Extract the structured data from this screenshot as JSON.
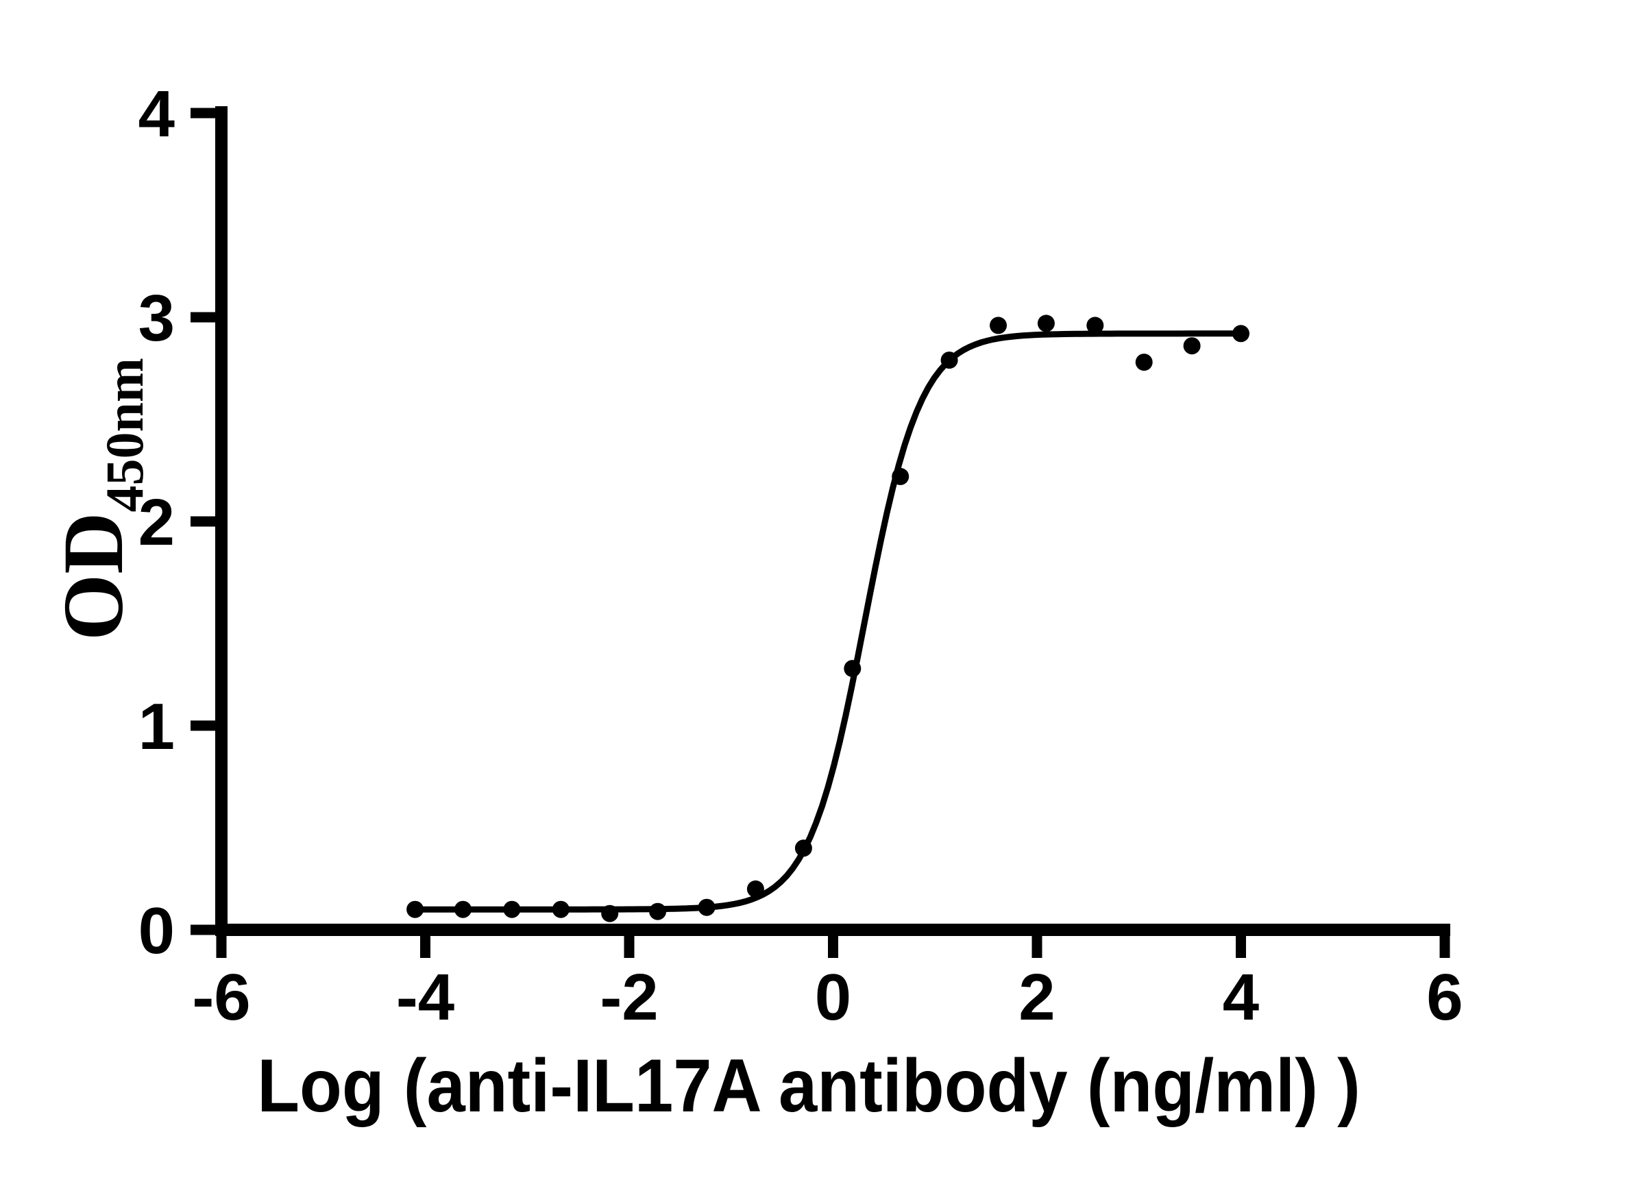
{
  "figure": {
    "background_color": "#ffffff",
    "ink_color": "#000000"
  },
  "chart_data": {
    "type": "scatter",
    "subtype": "sigmoidal-dose-response-with-fit-curve",
    "title": "",
    "xlabel": "Log (anti-IL17A antibody (ng/ml) )",
    "ylabel_main": "OD",
    "ylabel_sub": "450nm",
    "xlim": [
      -6,
      6
    ],
    "ylim": [
      0,
      4
    ],
    "x_ticks": [
      -6,
      -4,
      -2,
      0,
      2,
      4,
      6
    ],
    "y_ticks": [
      0,
      1,
      2,
      3,
      4
    ],
    "grid": false,
    "legend_position": "none",
    "marker_color": "#000000",
    "line_color": "#000000",
    "points": [
      {
        "x": -4.1,
        "y": 0.1
      },
      {
        "x": -3.63,
        "y": 0.1
      },
      {
        "x": -3.15,
        "y": 0.1
      },
      {
        "x": -2.67,
        "y": 0.1
      },
      {
        "x": -2.19,
        "y": 0.08
      },
      {
        "x": -1.72,
        "y": 0.09
      },
      {
        "x": -1.24,
        "y": 0.11
      },
      {
        "x": -0.76,
        "y": 0.2
      },
      {
        "x": -0.29,
        "y": 0.4
      },
      {
        "x": 0.19,
        "y": 1.28
      },
      {
        "x": 0.66,
        "y": 2.22
      },
      {
        "x": 1.14,
        "y": 2.79
      },
      {
        "x": 1.62,
        "y": 2.96
      },
      {
        "x": 2.09,
        "y": 2.97
      },
      {
        "x": 2.57,
        "y": 2.96
      },
      {
        "x": 3.05,
        "y": 2.78
      },
      {
        "x": 3.52,
        "y": 2.86
      },
      {
        "x": 4.0,
        "y": 2.92
      }
    ],
    "fit_curve": {
      "model": "4PL",
      "bottom": 0.1,
      "top": 2.92,
      "log_ec50": 0.31,
      "hill": 1.58,
      "x_start": -4.1,
      "x_end": 4.0
    }
  }
}
